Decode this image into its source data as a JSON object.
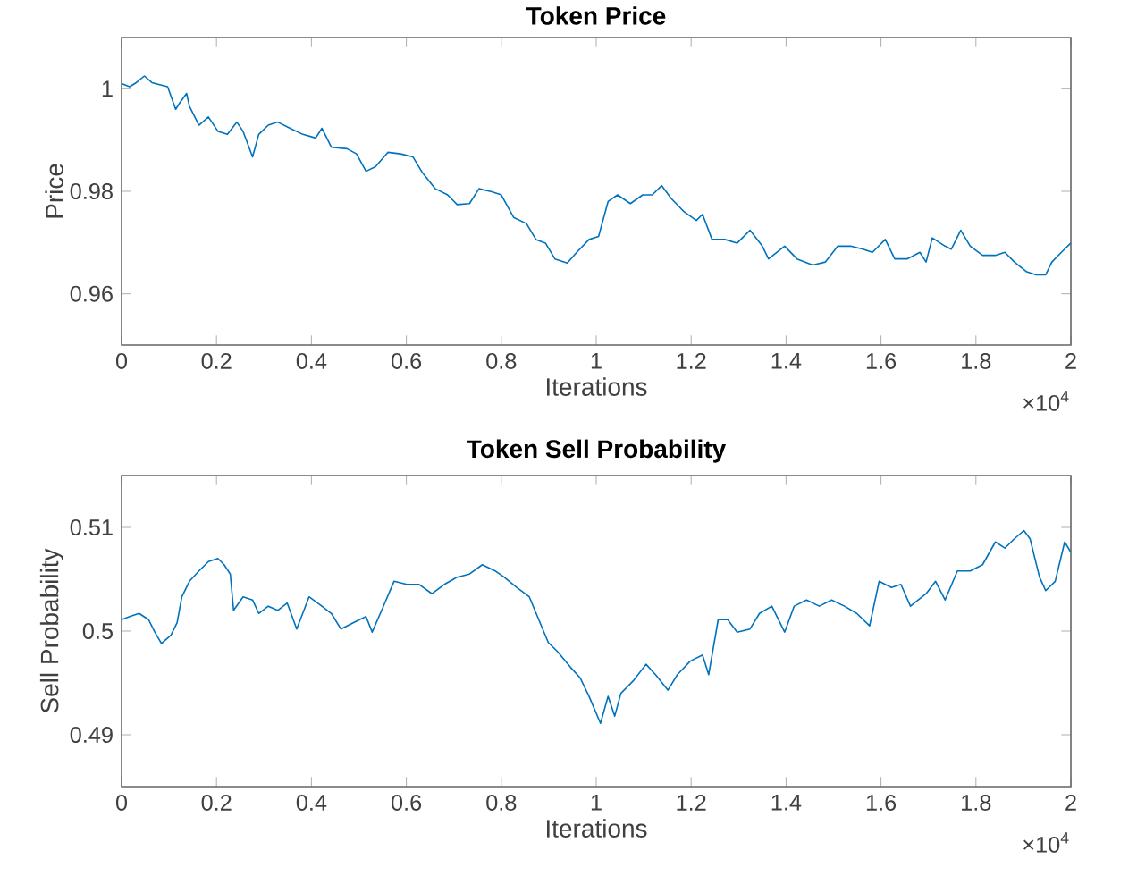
{
  "chart_data": [
    {
      "type": "line",
      "title": "Token Price",
      "xlabel": "Iterations",
      "ylabel": "Price",
      "annotations": [
        "×10$^{4}$"
      ],
      "xlim": [
        0,
        2
      ],
      "ylim": [
        0.95,
        1.01
      ],
      "marker": "none",
      "line_style": "solid",
      "xticks": [
        0,
        0.2,
        0.4,
        0.6,
        0.8,
        1,
        1.2,
        1.4,
        1.6,
        1.8,
        2
      ],
      "yticks": [
        0.96,
        0.98,
        1
      ],
      "series": [
        {
          "color": "#0072bd",
          "x": [
            0,
            0.017,
            0.031,
            0.048,
            0.064,
            0.084,
            0.097,
            0.114,
            0.123,
            0.137,
            0.143,
            0.163,
            0.183,
            0.203,
            0.223,
            0.243,
            0.256,
            0.276,
            0.289,
            0.309,
            0.329,
            0.355,
            0.382,
            0.409,
            0.422,
            0.442,
            0.475,
            0.495,
            0.515,
            0.535,
            0.561,
            0.588,
            0.614,
            0.634,
            0.661,
            0.687,
            0.707,
            0.733,
            0.753,
            0.78,
            0.8,
            0.826,
            0.853,
            0.873,
            0.893,
            0.913,
            0.939,
            0.959,
            0.985,
            1.005,
            1.025,
            1.045,
            1.072,
            1.098,
            1.118,
            1.138,
            1.158,
            1.184,
            1.211,
            1.224,
            1.244,
            1.271,
            1.297,
            1.324,
            1.35,
            1.363,
            1.397,
            1.423,
            1.456,
            1.483,
            1.509,
            1.536,
            1.562,
            1.582,
            1.609,
            1.629,
            1.655,
            1.682,
            1.695,
            1.708,
            1.735,
            1.748,
            1.768,
            1.788,
            1.814,
            1.841,
            1.861,
            1.881,
            1.907,
            1.927,
            1.947,
            1.96,
            1.98,
            2
          ],
          "values": [
            1.001,
            1.0004,
            1.0012,
            1.0025,
            1.0012,
            1.0007,
            1.0004,
            0.996,
            0.9973,
            0.9991,
            0.9966,
            0.9929,
            0.9945,
            0.9917,
            0.9911,
            0.9935,
            0.9917,
            0.9867,
            0.9911,
            0.9929,
            0.9935,
            0.9923,
            0.9911,
            0.9904,
            0.9923,
            0.9886,
            0.9883,
            0.9873,
            0.9839,
            0.9848,
            0.9876,
            0.9873,
            0.9867,
            0.9836,
            0.9805,
            0.9793,
            0.9774,
            0.9776,
            0.9805,
            0.9799,
            0.9793,
            0.9749,
            0.9737,
            0.9706,
            0.9699,
            0.9668,
            0.966,
            0.9681,
            0.9706,
            0.9712,
            0.978,
            0.9793,
            0.9776,
            0.9793,
            0.9793,
            0.9811,
            0.9786,
            0.9761,
            0.9743,
            0.9755,
            0.9706,
            0.9706,
            0.9699,
            0.9724,
            0.9693,
            0.9668,
            0.9693,
            0.9668,
            0.9656,
            0.9662,
            0.9693,
            0.9693,
            0.9687,
            0.9681,
            0.9706,
            0.9668,
            0.9668,
            0.9681,
            0.9662,
            0.9709,
            0.9693,
            0.9687,
            0.9724,
            0.9693,
            0.9675,
            0.9675,
            0.9681,
            0.9662,
            0.9643,
            0.9637,
            0.9637,
            0.9662,
            0.9681,
            0.9699
          ]
        }
      ]
    },
    {
      "type": "line",
      "title": "Token Sell Probability",
      "xlabel": "Iterations",
      "ylabel": "Sell Probability",
      "annotations": [
        "×10$^{4}$"
      ],
      "xlim": [
        0,
        2
      ],
      "ylim": [
        0.485,
        0.515
      ],
      "marker": "none",
      "line_style": "solid",
      "xticks": [
        0,
        0.2,
        0.4,
        0.6,
        0.8,
        1,
        1.2,
        1.4,
        1.6,
        1.8,
        2
      ],
      "yticks": [
        0.49,
        0.5,
        0.51
      ],
      "series": [
        {
          "color": "#0072bd",
          "x": [
            0,
            0.017,
            0.037,
            0.057,
            0.07,
            0.084,
            0.104,
            0.117,
            0.127,
            0.143,
            0.163,
            0.183,
            0.203,
            0.216,
            0.229,
            0.236,
            0.256,
            0.276,
            0.289,
            0.309,
            0.329,
            0.349,
            0.369,
            0.395,
            0.422,
            0.442,
            0.462,
            0.488,
            0.515,
            0.528,
            0.548,
            0.574,
            0.601,
            0.627,
            0.654,
            0.68,
            0.707,
            0.733,
            0.76,
            0.787,
            0.806,
            0.833,
            0.859,
            0.879,
            0.899,
            0.919,
            0.946,
            0.966,
            0.985,
            1.009,
            1.025,
            1.039,
            1.052,
            1.078,
            1.105,
            1.125,
            1.151,
            1.171,
            1.198,
            1.224,
            1.237,
            1.257,
            1.277,
            1.297,
            1.324,
            1.344,
            1.37,
            1.397,
            1.417,
            1.443,
            1.47,
            1.496,
            1.523,
            1.549,
            1.576,
            1.596,
            1.622,
            1.642,
            1.662,
            1.695,
            1.715,
            1.735,
            1.761,
            1.788,
            1.814,
            1.841,
            1.861,
            1.881,
            1.901,
            1.914,
            1.934,
            1.947,
            1.967,
            1.987,
            2
          ],
          "values": [
            0.5011,
            0.5014,
            0.5017,
            0.5011,
            0.4999,
            0.4988,
            0.4996,
            0.5008,
            0.5033,
            0.5048,
            0.5058,
            0.5067,
            0.507,
            0.5064,
            0.5055,
            0.502,
            0.5033,
            0.503,
            0.5017,
            0.5024,
            0.502,
            0.5027,
            0.5002,
            0.5033,
            0.5024,
            0.5017,
            0.5002,
            0.5008,
            0.5014,
            0.4999,
            0.502,
            0.5048,
            0.5045,
            0.5045,
            0.5036,
            0.5045,
            0.5052,
            0.5055,
            0.5064,
            0.5058,
            0.5052,
            0.5042,
            0.5033,
            0.5011,
            0.4989,
            0.498,
            0.4965,
            0.4955,
            0.4937,
            0.4911,
            0.4937,
            0.4918,
            0.494,
            0.4952,
            0.4968,
            0.4958,
            0.4943,
            0.4958,
            0.4971,
            0.4977,
            0.4958,
            0.5011,
            0.5011,
            0.4999,
            0.5002,
            0.5017,
            0.5024,
            0.4999,
            0.5024,
            0.503,
            0.5024,
            0.503,
            0.5024,
            0.5017,
            0.5005,
            0.5048,
            0.5042,
            0.5045,
            0.5024,
            0.5036,
            0.5048,
            0.503,
            0.5058,
            0.5058,
            0.5064,
            0.5086,
            0.508,
            0.5089,
            0.5097,
            0.5089,
            0.5052,
            0.5039,
            0.5048,
            0.5086,
            0.5076
          ]
        }
      ]
    }
  ]
}
